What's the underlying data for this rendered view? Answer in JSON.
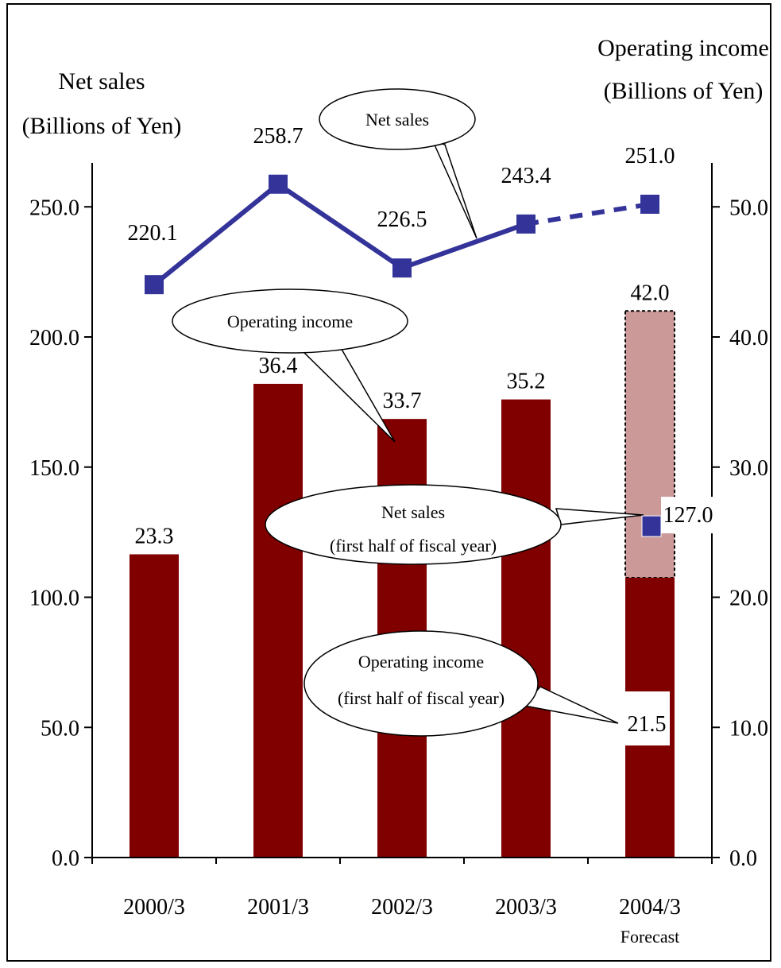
{
  "chart_data": {
    "type": "bar",
    "categories": [
      "2000/3",
      "2001/3",
      "2002/3",
      "2003/3",
      "2004/3"
    ],
    "category_note": "Forecast",
    "left_axis": {
      "title_line1": "Net sales",
      "title_line2": "(Billions of Yen)",
      "ticks": [
        "0.0",
        "50.0",
        "100.0",
        "150.0",
        "200.0",
        "250.0"
      ],
      "range": [
        0,
        270
      ]
    },
    "right_axis": {
      "title_line1": "Operating income",
      "title_line2": "(Billions of Yen)",
      "ticks": [
        "0.0",
        "10.0",
        "20.0",
        "30.0",
        "40.0",
        "50.0"
      ],
      "range": [
        0,
        54
      ]
    },
    "series": [
      {
        "name": "Net sales",
        "type": "line",
        "axis": "left",
        "color": "#333399",
        "values": [
          220.1,
          258.7,
          226.5,
          243.4,
          251.0
        ],
        "labels": [
          "220.1",
          "258.7",
          "226.5",
          "243.4",
          "251.0"
        ],
        "dashed_from_index": 3
      },
      {
        "name": "Operating income",
        "type": "bar",
        "axis": "right",
        "color": "#800000",
        "values": [
          23.3,
          36.4,
          33.7,
          35.2,
          42.0
        ],
        "labels": [
          "23.3",
          "36.4",
          "33.7",
          "35.2",
          "42.0"
        ],
        "forecast_color": "#cc9999"
      },
      {
        "name": "Net sales (first half of fiscal year)",
        "type": "point",
        "axis": "left",
        "color": "#333399",
        "category": "2004/3",
        "value": 127.0,
        "label": "127.0"
      },
      {
        "name": "Operating income (first half of fiscal year)",
        "type": "bar",
        "axis": "right",
        "color": "#800000",
        "category": "2004/3",
        "value": 21.5,
        "label": "21.5"
      }
    ],
    "callouts": {
      "net_sales": "Net sales",
      "operating_income": "Operating income",
      "net_sales_half_line1": "Net sales",
      "net_sales_half_line2": "(first half of fiscal year)",
      "operating_income_half_line1": "Operating income",
      "operating_income_half_line2": "(first half of fiscal year)"
    }
  }
}
